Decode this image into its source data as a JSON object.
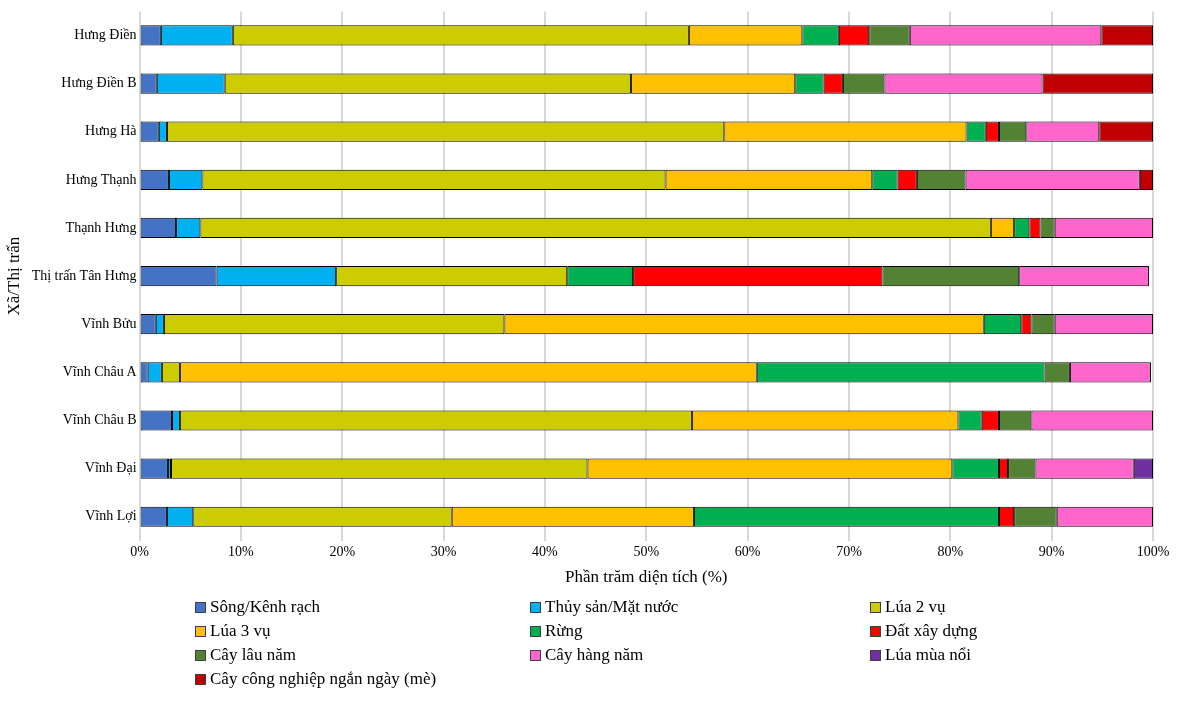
{
  "chart_data": {
    "type": "bar",
    "orientation": "horizontal",
    "stacked": true,
    "xlabel": "Phần trăm diện tích (%)",
    "ylabel": "Xã/Thị trấn",
    "categories": [
      "Hưng Điền",
      "Hưng Điền B",
      "Hưng Hà",
      "Hưng Thạnh",
      "Thạnh Hưng",
      "Thị trấn Tân Hưng",
      "Vĩnh Bửu",
      "Vĩnh Châu A",
      "Vĩnh Châu B",
      "Vĩnh Đại",
      "Vĩnh Lợi"
    ],
    "xlim": [
      0,
      100
    ],
    "xticks": [
      {
        "value": 0,
        "label": "0%"
      },
      {
        "value": 10,
        "label": "10%"
      },
      {
        "value": 20,
        "label": "20%"
      },
      {
        "value": 30,
        "label": "30%"
      },
      {
        "value": 40,
        "label": "40%"
      },
      {
        "value": 50,
        "label": "50%"
      },
      {
        "value": 60,
        "label": "60%"
      },
      {
        "value": 70,
        "label": "70%"
      },
      {
        "value": 80,
        "label": "80%"
      },
      {
        "value": 90,
        "label": "90%"
      },
      {
        "value": 100,
        "label": "100%"
      }
    ],
    "grid": "x",
    "legend": "bottom",
    "series": [
      {
        "name": "Sông/Kênh rạch",
        "color": "#4472c4",
        "values": [
          2.1,
          1.7,
          1.9,
          2.9,
          3.6,
          7.6,
          1.6,
          0.8,
          3.2,
          2.8,
          2.7
        ]
      },
      {
        "name": "Thủy sản/Mặt nước",
        "color": "#00b0f0",
        "values": [
          7.1,
          6.7,
          0.8,
          3.3,
          2.4,
          11.8,
          0.8,
          1.4,
          0.8,
          0.3,
          2.6
        ]
      },
      {
        "name": "Lúa 2 vụ",
        "color": "#cccc00",
        "values": [
          45.0,
          40.1,
          55.0,
          45.7,
          78.0,
          22.8,
          33.6,
          1.8,
          50.5,
          41.1,
          25.5
        ]
      },
      {
        "name": "Lúa 3 vụ",
        "color": "#ffc000",
        "values": [
          11.2,
          16.2,
          23.9,
          20.4,
          2.3,
          null,
          47.3,
          56.9,
          26.3,
          36.0,
          23.9
        ]
      },
      {
        "name": "Rừng",
        "color": "#00b050",
        "values": [
          3.6,
          2.8,
          1.9,
          2.5,
          1.5,
          6.5,
          3.7,
          28.4,
          2.3,
          4.6,
          30.1
        ]
      },
      {
        "name": "Đất xây dựng",
        "color": "#ff0000",
        "values": [
          3.0,
          1.9,
          1.3,
          1.9,
          1.1,
          24.6,
          1.0,
          null,
          1.7,
          0.9,
          1.5
        ]
      },
      {
        "name": "Cây lâu năm",
        "color": "#548235",
        "values": [
          4.0,
          4.1,
          2.7,
          4.8,
          1.4,
          13.5,
          2.3,
          2.5,
          3.2,
          2.7,
          4.2
        ]
      },
      {
        "name": "Cây hàng năm",
        "color": "#ff66cc",
        "values": [
          18.9,
          15.6,
          7.2,
          17.2,
          9.7,
          12.8,
          9.7,
          8.0,
          12.0,
          9.7,
          9.5
        ]
      },
      {
        "name": "Lúa mùa nổi",
        "color": "#7030a0",
        "values": [
          null,
          null,
          null,
          null,
          null,
          null,
          null,
          null,
          null,
          1.9,
          null
        ]
      },
      {
        "name": "Cây công nghiệp ngắn ngày (mè)",
        "color": "#c00000",
        "values": [
          5.1,
          10.9,
          5.3,
          1.3,
          null,
          null,
          null,
          null,
          null,
          null,
          null
        ]
      }
    ]
  }
}
